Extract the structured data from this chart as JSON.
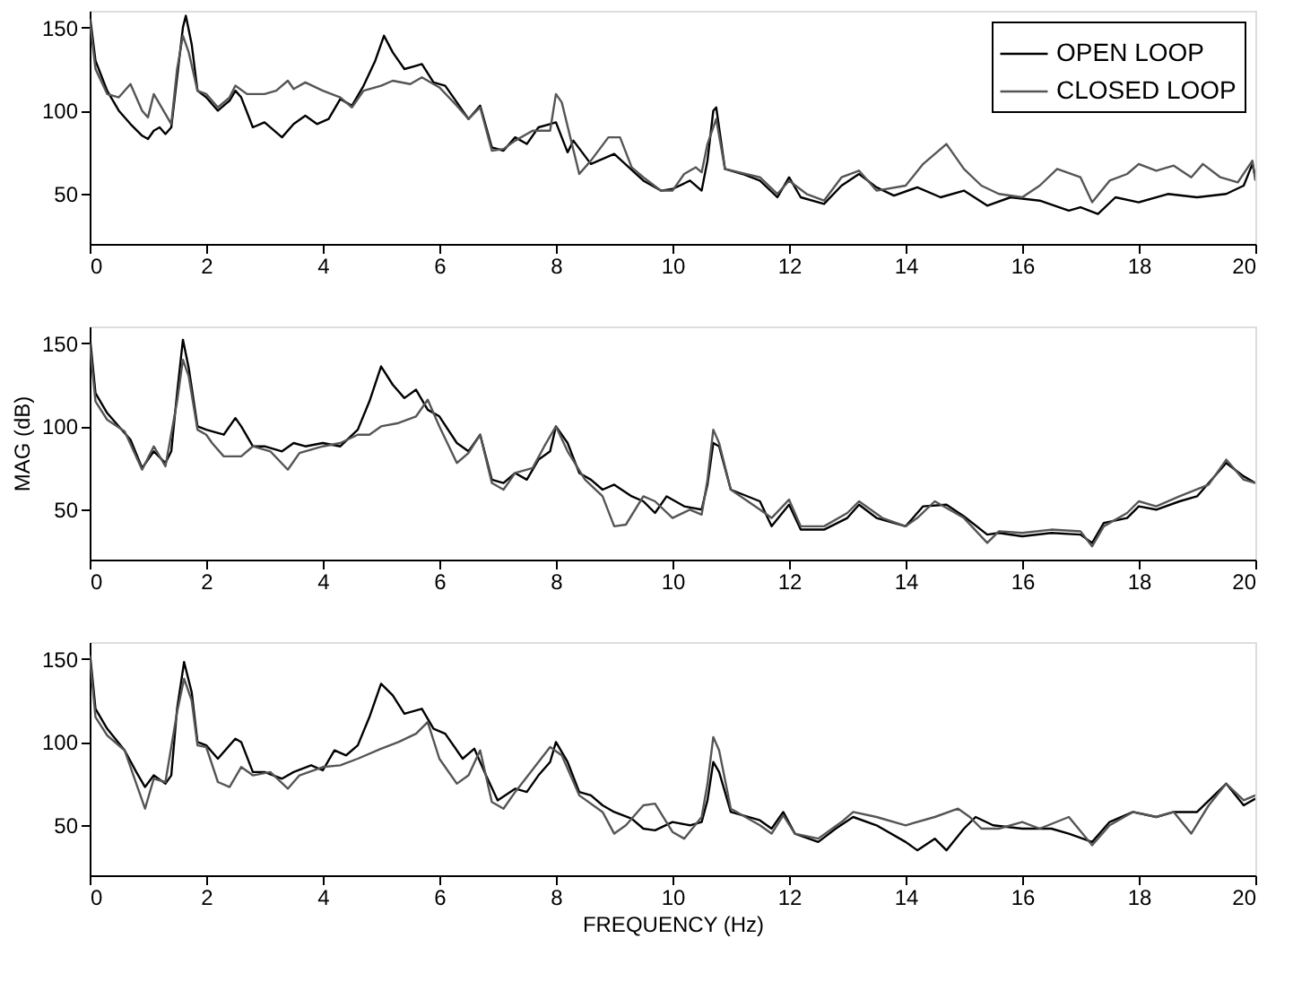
{
  "chart_data": [
    {
      "type": "line",
      "xlim": [
        0,
        20
      ],
      "xticks": [
        0,
        2,
        4,
        6,
        8,
        10,
        12,
        14,
        16,
        18,
        20
      ],
      "ylim": [
        20,
        160
      ],
      "yticks": [
        50,
        100,
        150
      ],
      "grid": false,
      "legend": "top right",
      "marker": "none",
      "line_style": "solid",
      "series": [
        {
          "name": "OPEN LOOP",
          "color": "#000000",
          "x": [
            0,
            0.1,
            0.3,
            0.5,
            0.7,
            0.9,
            1.0,
            1.1,
            1.2,
            1.3,
            1.4,
            1.5,
            1.6,
            1.65,
            1.75,
            1.85,
            2.0,
            2.2,
            2.4,
            2.5,
            2.6,
            2.8,
            3.0,
            3.3,
            3.5,
            3.7,
            3.9,
            4.1,
            4.3,
            4.5,
            4.7,
            4.9,
            5.05,
            5.2,
            5.4,
            5.6,
            5.7,
            5.9,
            6.1,
            6.3,
            6.5,
            6.7,
            6.9,
            7.1,
            7.3,
            7.5,
            7.7,
            7.9,
            8.0,
            8.2,
            8.3,
            8.6,
            9.0,
            9.5,
            9.8,
            10.0,
            10.3,
            10.5,
            10.6,
            10.7,
            10.75,
            10.9,
            11.2,
            11.5,
            11.8,
            12.0,
            12.2,
            12.6,
            12.9,
            13.2,
            13.5,
            13.8,
            14.2,
            14.6,
            15.0,
            15.4,
            15.8,
            16.3,
            16.8,
            17.0,
            17.3,
            17.6,
            18.0,
            18.5,
            19.0,
            19.5,
            19.8,
            19.95,
            20
          ],
          "values": [
            158,
            130,
            112,
            100,
            92,
            85,
            83,
            88,
            90,
            86,
            90,
            120,
            150,
            157,
            140,
            112,
            108,
            100,
            106,
            112,
            108,
            90,
            93,
            84,
            92,
            97,
            92,
            95,
            107,
            103,
            115,
            130,
            145,
            135,
            125,
            127,
            128,
            117,
            115,
            105,
            95,
            103,
            78,
            76,
            84,
            80,
            90,
            92,
            93,
            75,
            82,
            68,
            74,
            58,
            52,
            53,
            58,
            52,
            70,
            100,
            102,
            65,
            62,
            58,
            48,
            60,
            48,
            44,
            55,
            62,
            54,
            49,
            54,
            48,
            52,
            43,
            48,
            46,
            40,
            42,
            38,
            48,
            45,
            50,
            48,
            50,
            55,
            68,
            60
          ]
        },
        {
          "name": "CLOSED LOOP",
          "color": "#555555",
          "x": [
            0,
            0.1,
            0.3,
            0.5,
            0.7,
            0.9,
            1.0,
            1.1,
            1.3,
            1.4,
            1.5,
            1.6,
            1.7,
            1.85,
            2.0,
            2.2,
            2.4,
            2.5,
            2.7,
            3.0,
            3.2,
            3.4,
            3.5,
            3.7,
            4.0,
            4.3,
            4.5,
            4.7,
            5.0,
            5.2,
            5.5,
            5.7,
            6.0,
            6.3,
            6.5,
            6.7,
            6.9,
            7.1,
            7.3,
            7.6,
            7.9,
            8.0,
            8.1,
            8.4,
            8.6,
            8.9,
            9.1,
            9.3,
            9.5,
            9.8,
            10.0,
            10.2,
            10.4,
            10.5,
            10.6,
            10.75,
            10.9,
            11.5,
            11.8,
            12.0,
            12.3,
            12.6,
            12.9,
            13.2,
            13.5,
            14.0,
            14.3,
            14.7,
            15.0,
            15.3,
            15.6,
            16.0,
            16.3,
            16.6,
            17.0,
            17.2,
            17.5,
            17.8,
            18.0,
            18.3,
            18.6,
            18.9,
            19.1,
            19.4,
            19.7,
            19.95,
            20
          ],
          "values": [
            155,
            125,
            110,
            108,
            116,
            100,
            96,
            110,
            98,
            92,
            125,
            145,
            135,
            112,
            110,
            102,
            108,
            115,
            110,
            110,
            112,
            118,
            113,
            117,
            112,
            108,
            102,
            112,
            115,
            118,
            116,
            120,
            114,
            103,
            95,
            102,
            76,
            77,
            82,
            88,
            88,
            110,
            105,
            62,
            70,
            84,
            84,
            66,
            60,
            52,
            52,
            62,
            66,
            63,
            80,
            95,
            65,
            60,
            50,
            58,
            50,
            46,
            60,
            64,
            52,
            55,
            68,
            80,
            65,
            55,
            50,
            48,
            55,
            65,
            60,
            45,
            58,
            62,
            68,
            64,
            67,
            60,
            68,
            60,
            57,
            70,
            58
          ]
        }
      ]
    },
    {
      "type": "line",
      "xlim": [
        0,
        20
      ],
      "xticks": [
        0,
        2,
        4,
        6,
        8,
        10,
        12,
        14,
        16,
        18,
        20
      ],
      "ylim": [
        20,
        160
      ],
      "yticks": [
        50,
        100,
        150
      ],
      "ylabel": "MAG (dB)",
      "grid": false,
      "marker": "none",
      "line_style": "solid",
      "series": [
        {
          "color": "#000000",
          "x": [
            0,
            0.1,
            0.3,
            0.5,
            0.7,
            0.9,
            1.1,
            1.3,
            1.4,
            1.5,
            1.6,
            1.7,
            1.85,
            2.0,
            2.3,
            2.5,
            2.6,
            2.8,
            3.0,
            3.3,
            3.5,
            3.7,
            4.0,
            4.3,
            4.6,
            4.8,
            5.0,
            5.2,
            5.4,
            5.6,
            5.8,
            6.0,
            6.3,
            6.5,
            6.7,
            6.9,
            7.1,
            7.3,
            7.5,
            7.7,
            7.9,
            8.0,
            8.2,
            8.4,
            8.6,
            8.8,
            9.0,
            9.3,
            9.5,
            9.7,
            9.9,
            10.2,
            10.5,
            10.6,
            10.7,
            10.8,
            11.0,
            11.5,
            11.7,
            12.0,
            12.2,
            12.6,
            13.0,
            13.2,
            13.5,
            14.0,
            14.3,
            14.7,
            15.0,
            15.4,
            15.6,
            16.0,
            16.5,
            17.0,
            17.2,
            17.4,
            17.8,
            18.0,
            18.3,
            18.7,
            19.0,
            19.5,
            19.8,
            20
          ],
          "values": [
            155,
            120,
            108,
            100,
            92,
            75,
            85,
            78,
            85,
            120,
            152,
            135,
            100,
            98,
            95,
            105,
            100,
            88,
            88,
            85,
            90,
            88,
            90,
            88,
            98,
            115,
            136,
            125,
            117,
            122,
            110,
            106,
            90,
            85,
            95,
            68,
            66,
            72,
            68,
            80,
            85,
            100,
            90,
            72,
            68,
            62,
            65,
            58,
            55,
            48,
            58,
            52,
            50,
            65,
            90,
            88,
            62,
            55,
            40,
            53,
            38,
            38,
            45,
            53,
            45,
            40,
            52,
            53,
            46,
            35,
            36,
            34,
            36,
            35,
            30,
            42,
            45,
            52,
            50,
            55,
            58,
            78,
            70,
            66
          ]
        },
        {
          "color": "#555555",
          "x": [
            0,
            0.1,
            0.3,
            0.6,
            0.9,
            1.1,
            1.3,
            1.5,
            1.6,
            1.7,
            1.85,
            2.0,
            2.1,
            2.3,
            2.6,
            2.8,
            3.1,
            3.4,
            3.6,
            4.0,
            4.3,
            4.6,
            4.8,
            5.0,
            5.3,
            5.6,
            5.8,
            6.0,
            6.3,
            6.5,
            6.7,
            6.9,
            7.1,
            7.3,
            7.6,
            7.8,
            8.0,
            8.2,
            8.5,
            8.8,
            9.0,
            9.2,
            9.5,
            9.7,
            10.0,
            10.3,
            10.5,
            10.6,
            10.7,
            10.8,
            11.0,
            11.5,
            11.7,
            12.0,
            12.2,
            12.6,
            13.0,
            13.2,
            13.6,
            14.0,
            14.2,
            14.5,
            15.0,
            15.4,
            15.6,
            16.0,
            16.5,
            17.0,
            17.2,
            17.4,
            17.8,
            18.0,
            18.3,
            18.7,
            19.2,
            19.5,
            19.8,
            20
          ],
          "values": [
            150,
            115,
            104,
            97,
            74,
            88,
            76,
            115,
            140,
            130,
            98,
            95,
            90,
            82,
            82,
            88,
            85,
            74,
            84,
            88,
            90,
            95,
            95,
            100,
            102,
            106,
            116,
            100,
            78,
            84,
            95,
            66,
            62,
            72,
            75,
            88,
            100,
            85,
            68,
            58,
            40,
            41,
            58,
            55,
            45,
            50,
            47,
            68,
            98,
            90,
            62,
            50,
            45,
            56,
            40,
            40,
            48,
            55,
            45,
            40,
            45,
            55,
            45,
            30,
            37,
            36,
            38,
            37,
            28,
            40,
            48,
            55,
            52,
            58,
            65,
            80,
            68,
            66
          ]
        }
      ]
    },
    {
      "type": "line",
      "xlim": [
        0,
        20
      ],
      "xticks": [
        0,
        2,
        4,
        6,
        8,
        10,
        12,
        14,
        16,
        18,
        20
      ],
      "ylim": [
        20,
        160
      ],
      "yticks": [
        50,
        100,
        150
      ],
      "xlabel": "FREQUENCY (Hz)",
      "grid": false,
      "marker": "none",
      "line_style": "solid",
      "series": [
        {
          "color": "#000000",
          "x": [
            0,
            0.1,
            0.3,
            0.6,
            0.8,
            0.95,
            1.1,
            1.3,
            1.4,
            1.5,
            1.62,
            1.75,
            1.85,
            2.0,
            2.2,
            2.5,
            2.6,
            2.8,
            3.0,
            3.3,
            3.5,
            3.8,
            4.0,
            4.2,
            4.4,
            4.6,
            4.8,
            5.0,
            5.2,
            5.4,
            5.7,
            5.9,
            6.1,
            6.4,
            6.6,
            6.8,
            7.0,
            7.3,
            7.5,
            7.7,
            7.9,
            8.0,
            8.2,
            8.4,
            8.6,
            8.8,
            9.0,
            9.3,
            9.5,
            9.7,
            10.0,
            10.3,
            10.5,
            10.6,
            10.7,
            10.8,
            11.0,
            11.5,
            11.7,
            11.9,
            12.1,
            12.5,
            12.8,
            13.1,
            13.5,
            14.0,
            14.2,
            14.5,
            14.7,
            15.0,
            15.2,
            15.5,
            16.0,
            16.5,
            16.8,
            17.2,
            17.5,
            17.9,
            18.3,
            18.6,
            19.0,
            19.5,
            19.8,
            20
          ],
          "values": [
            155,
            120,
            108,
            95,
            82,
            73,
            80,
            75,
            80,
            120,
            148,
            130,
            100,
            98,
            90,
            102,
            100,
            82,
            82,
            78,
            82,
            86,
            83,
            95,
            92,
            98,
            115,
            135,
            128,
            117,
            120,
            108,
            105,
            90,
            96,
            80,
            65,
            72,
            70,
            80,
            88,
            100,
            88,
            70,
            68,
            62,
            58,
            54,
            48,
            47,
            52,
            50,
            52,
            65,
            88,
            82,
            58,
            53,
            48,
            58,
            45,
            40,
            48,
            55,
            50,
            40,
            35,
            42,
            35,
            48,
            55,
            50,
            48,
            48,
            45,
            40,
            52,
            58,
            55,
            58,
            58,
            75,
            62,
            66
          ]
        },
        {
          "color": "#555555",
          "x": [
            0,
            0.1,
            0.3,
            0.6,
            0.8,
            0.95,
            1.1,
            1.3,
            1.5,
            1.62,
            1.75,
            1.85,
            2.0,
            2.2,
            2.4,
            2.6,
            2.8,
            3.1,
            3.4,
            3.6,
            4.0,
            4.3,
            4.6,
            5.0,
            5.3,
            5.6,
            5.8,
            6.0,
            6.3,
            6.5,
            6.7,
            6.9,
            7.1,
            7.3,
            7.7,
            7.9,
            8.1,
            8.4,
            8.8,
            9.0,
            9.2,
            9.5,
            9.7,
            10.0,
            10.2,
            10.5,
            10.6,
            10.7,
            10.8,
            11.0,
            11.5,
            11.7,
            11.9,
            12.1,
            12.5,
            12.9,
            13.1,
            13.5,
            14.0,
            14.5,
            14.9,
            15.1,
            15.3,
            15.6,
            16.0,
            16.3,
            16.8,
            17.2,
            17.5,
            17.9,
            18.3,
            18.6,
            18.9,
            19.2,
            19.5,
            19.8,
            20
          ],
          "values": [
            152,
            115,
            104,
            95,
            75,
            60,
            78,
            76,
            118,
            138,
            125,
            98,
            97,
            76,
            73,
            85,
            80,
            82,
            72,
            80,
            85,
            86,
            90,
            96,
            100,
            105,
            112,
            90,
            75,
            80,
            95,
            64,
            60,
            70,
            88,
            97,
            92,
            68,
            58,
            45,
            50,
            62,
            63,
            46,
            42,
            55,
            75,
            103,
            95,
            60,
            50,
            45,
            56,
            45,
            42,
            52,
            58,
            55,
            50,
            55,
            60,
            55,
            48,
            48,
            52,
            48,
            55,
            38,
            50,
            58,
            55,
            58,
            45,
            62,
            75,
            65,
            68
          ]
        }
      ]
    }
  ]
}
